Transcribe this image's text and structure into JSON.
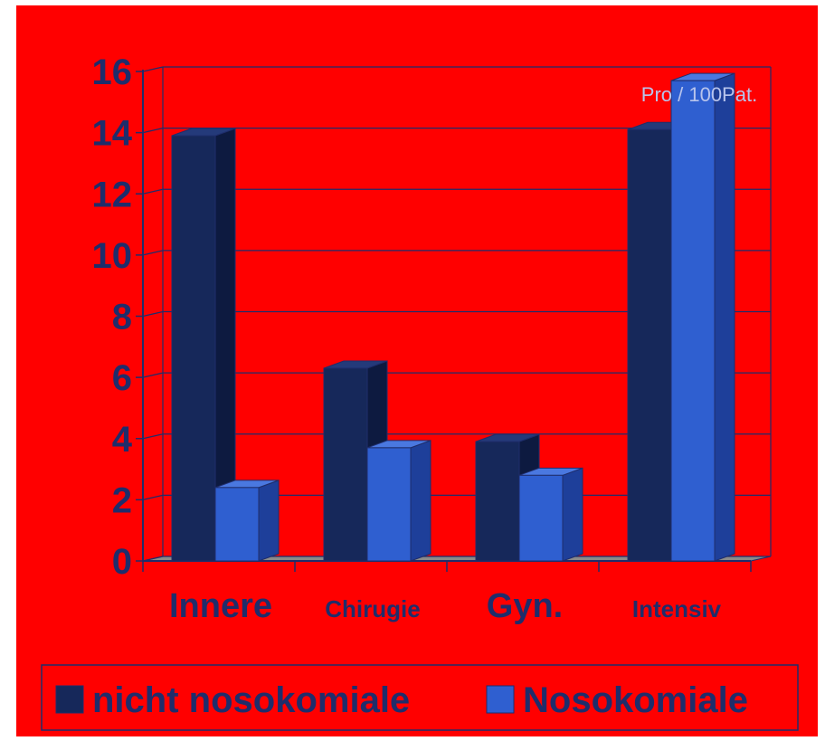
{
  "chart_data": {
    "type": "bar",
    "title": "",
    "annotation": "Pro / 100Pat.",
    "categories": [
      "Innere",
      "Chirugie",
      "Gyn.",
      "Intensiv"
    ],
    "series": [
      {
        "name": "nicht nosokomiale",
        "values": [
          13.9,
          6.3,
          3.9,
          14.1
        ]
      },
      {
        "name": "Nosokomiale",
        "values": [
          2.4,
          3.7,
          2.8,
          15.7
        ]
      }
    ],
    "yticks": [
      0,
      2,
      4,
      6,
      8,
      10,
      12,
      14,
      16
    ],
    "ylim": [
      0,
      16
    ],
    "grid": true,
    "legend_position": "bottom",
    "colors": {
      "background": "#ff0000",
      "axis": "#1f2d6b",
      "text": "#1f2d6b",
      "floor": "#8a8a8a",
      "annotation": "#b8c4ec",
      "series": [
        "#16285a",
        "#2f5fd0"
      ],
      "series_side": [
        "#0d1a40",
        "#1e3f9a"
      ],
      "series_top": [
        "#243a7a",
        "#4a78e0"
      ]
    }
  }
}
